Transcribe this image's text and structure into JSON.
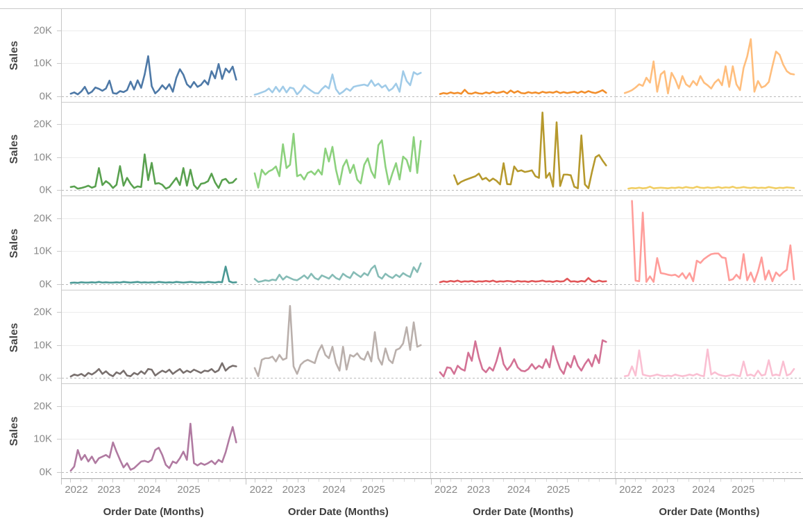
{
  "y_axis": {
    "title": "Sales",
    "ticks": [
      {
        "label": "20K",
        "value": 20000
      },
      {
        "label": "10K",
        "value": 10000
      },
      {
        "label": "0K",
        "value": 0
      }
    ]
  },
  "x_axis": {
    "title": "Order Date (Months)",
    "tick_labels": [
      "2022",
      "2023",
      "2024",
      "2025"
    ]
  },
  "style": {
    "tick_label_color": "#8a8a8a",
    "axis_title_color": "#3d3d3d",
    "gridline_color": "#ececec",
    "zero_line_color": "#b9b9b9",
    "background": "#ffffff"
  },
  "chart_data": {
    "type": "line",
    "title": "",
    "xlabel": "Order Date (Months)",
    "ylabel": "Sales",
    "x_unit": "month",
    "x_start": "2022-01",
    "x_end": "2025-12",
    "points_per_series": 48,
    "values_unit": "thousands (K)",
    "ylim_k": [
      0,
      27
    ],
    "grid_rows": 5,
    "grid_cols": 4,
    "empty_cells": 3,
    "panels": [
      {
        "row": 1,
        "col": 1,
        "color": "#4E79A7",
        "values_k": [
          0.5,
          0.9,
          0.3,
          1.2,
          2.6,
          0.5,
          1.1,
          2.4,
          2.0,
          1.4,
          2.1,
          4.5,
          0.7,
          0.5,
          1.3,
          1.0,
          1.6,
          4.2,
          1.8,
          4.6,
          2.3,
          6.4,
          12.0,
          2.8,
          0.6,
          1.6,
          3.1,
          1.9,
          3.4,
          1.1,
          5.4,
          8.0,
          6.3,
          3.4,
          2.4,
          4.1,
          2.6,
          3.2,
          4.6,
          3.3,
          7.4,
          5.2,
          9.6,
          5.0,
          8.2,
          7.0,
          8.8,
          4.8
        ]
      },
      {
        "row": 1,
        "col": 2,
        "color": "#A0CBE8",
        "values_k": [
          0.2,
          0.5,
          0.9,
          1.3,
          2.1,
          0.9,
          2.6,
          1.1,
          2.7,
          0.9,
          2.4,
          2.1,
          0.3,
          1.4,
          3.1,
          2.2,
          1.4,
          0.7,
          0.6,
          1.9,
          2.9,
          2.1,
          6.4,
          1.9,
          0.4,
          1.1,
          2.1,
          1.4,
          2.6,
          2.9,
          3.1,
          3.3,
          2.9,
          4.6,
          2.9,
          3.6,
          2.4,
          3.1,
          1.4,
          2.1,
          3.6,
          1.1,
          7.4,
          4.4,
          3.1,
          7.1,
          6.4,
          6.9
        ]
      },
      {
        "row": 1,
        "col": 3,
        "color": "#F28E2B",
        "values_k": [
          0.4,
          0.7,
          0.5,
          0.9,
          0.6,
          0.8,
          0.5,
          1.7,
          0.6,
          0.5,
          0.9,
          0.6,
          0.5,
          0.9,
          0.6,
          1.1,
          0.7,
          0.9,
          1.2,
          0.6,
          1.5,
          0.8,
          1.3,
          0.7,
          0.6,
          1.0,
          0.7,
          0.9,
          0.6,
          1.1,
          0.8,
          1.0,
          0.8,
          1.2,
          0.7,
          1.0,
          0.7,
          0.9,
          1.1,
          0.7,
          1.2,
          0.8,
          1.3,
          0.9,
          0.7,
          1.1,
          1.6,
          0.8
        ]
      },
      {
        "row": 1,
        "col": 4,
        "color": "#FFBE7D",
        "values_k": [
          0.7,
          1.1,
          1.6,
          2.4,
          3.4,
          2.9,
          5.4,
          3.9,
          10.4,
          1.1,
          6.4,
          7.4,
          0.6,
          6.9,
          4.9,
          2.1,
          5.9,
          3.4,
          2.6,
          4.4,
          3.1,
          5.9,
          3.9,
          3.1,
          2.1,
          3.9,
          4.9,
          3.1,
          8.9,
          2.6,
          8.9,
          3.4,
          1.6,
          8.4,
          11.9,
          17.2,
          1.1,
          4.4,
          2.4,
          2.9,
          4.1,
          8.9,
          13.4,
          12.4,
          9.4,
          7.4,
          6.6,
          6.4
        ]
      },
      {
        "row": 2,
        "col": 1,
        "color": "#59A14F",
        "values_k": [
          0.8,
          1.0,
          0.3,
          0.5,
          0.8,
          1.2,
          0.6,
          1.0,
          6.6,
          1.4,
          2.6,
          1.8,
          0.5,
          1.5,
          7.2,
          1.2,
          3.6,
          1.8,
          0.5,
          1.0,
          0.8,
          10.8,
          2.9,
          8.2,
          1.8,
          2.0,
          1.5,
          0.3,
          0.8,
          2.2,
          3.6,
          1.4,
          6.6,
          1.2,
          6.1,
          1.4,
          0.2,
          1.8,
          2.0,
          2.6,
          4.9,
          2.2,
          0.5,
          2.9,
          3.3,
          2.0,
          2.2,
          3.3
        ]
      },
      {
        "row": 2,
        "col": 2,
        "color": "#8CD17D",
        "values_k": [
          5.0,
          0.6,
          6.1,
          4.6,
          5.6,
          6.1,
          7.1,
          4.1,
          13.9,
          6.6,
          7.6,
          17.1,
          4.1,
          4.6,
          3.1,
          5.1,
          5.6,
          4.6,
          6.1,
          4.6,
          12.6,
          8.6,
          13.1,
          6.1,
          1.6,
          7.1,
          9.1,
          5.1,
          7.6,
          3.1,
          1.9,
          7.6,
          9.6,
          5.6,
          3.6,
          13.6,
          15.1,
          7.1,
          1.6,
          5.1,
          8.1,
          3.1,
          10.1,
          9.1,
          5.6,
          16.1,
          5.1,
          14.9
        ]
      },
      {
        "row": 2,
        "col": 3,
        "color": "#B6992D",
        "values_k": [
          null,
          null,
          null,
          null,
          4.4,
          1.6,
          2.4,
          2.9,
          3.3,
          3.7,
          4.1,
          4.9,
          3.1,
          3.6,
          2.6,
          3.4,
          2.7,
          1.6,
          8.1,
          1.7,
          1.6,
          7.1,
          5.6,
          5.9,
          5.4,
          5.6,
          5.9,
          4.1,
          3.6,
          23.6,
          3.6,
          5.1,
          0.9,
          20.6,
          1.1,
          4.6,
          4.6,
          4.4,
          0.9,
          0.4,
          16.6,
          1.6,
          0.4,
          5.4,
          9.9,
          10.6,
          8.9,
          7.4
        ]
      },
      {
        "row": 2,
        "col": 4,
        "color": "#F1CE63",
        "values_k": [
          null,
          0.3,
          0.5,
          0.4,
          0.6,
          0.4,
          0.5,
          0.9,
          0.4,
          0.5,
          0.6,
          0.5,
          0.4,
          0.6,
          0.5,
          0.7,
          0.5,
          0.8,
          0.6,
          0.5,
          0.9,
          0.6,
          0.5,
          0.7,
          0.5,
          0.6,
          0.8,
          0.5,
          0.7,
          0.6,
          0.9,
          0.5,
          0.6,
          0.8,
          0.6,
          0.5,
          0.7,
          0.5,
          0.6,
          0.5,
          0.8,
          0.6,
          0.4,
          0.6,
          0.5,
          0.7,
          0.6,
          0.5
        ]
      },
      {
        "row": 3,
        "col": 1,
        "color": "#499894",
        "values_k": [
          0.1,
          0.2,
          0.1,
          0.3,
          0.2,
          0.2,
          0.3,
          0.2,
          0.4,
          0.2,
          0.3,
          0.2,
          0.2,
          0.3,
          0.2,
          0.4,
          0.3,
          0.2,
          0.3,
          0.4,
          0.2,
          0.3,
          0.2,
          0.3,
          0.2,
          0.4,
          0.3,
          0.2,
          0.3,
          0.2,
          0.4,
          0.3,
          0.2,
          0.3,
          0.4,
          0.3,
          0.2,
          0.3,
          0.2,
          0.4,
          0.3,
          0.2,
          0.4,
          0.3,
          5.1,
          0.6,
          0.2,
          0.3
        ]
      },
      {
        "row": 3,
        "col": 2,
        "color": "#86BCB6",
        "values_k": [
          1.3,
          0.4,
          0.6,
          0.9,
          0.7,
          1.1,
          0.9,
          2.6,
          1.1,
          2.1,
          1.6,
          1.1,
          0.9,
          1.6,
          2.4,
          1.4,
          2.9,
          1.6,
          1.1,
          2.4,
          1.9,
          1.4,
          2.6,
          1.6,
          1.1,
          2.9,
          2.1,
          1.6,
          3.4,
          2.6,
          1.9,
          3.1,
          2.4,
          4.4,
          5.4,
          2.1,
          1.4,
          2.9,
          2.1,
          1.6,
          2.6,
          1.9,
          3.1,
          2.4,
          1.9,
          4.9,
          3.4,
          6.1
        ]
      },
      {
        "row": 3,
        "col": 3,
        "color": "#E15759",
        "values_k": [
          0.3,
          0.6,
          0.4,
          0.7,
          0.5,
          0.8,
          0.4,
          0.6,
          0.5,
          0.7,
          0.4,
          0.6,
          0.5,
          0.7,
          0.5,
          0.8,
          0.4,
          0.6,
          0.5,
          0.7,
          0.6,
          0.4,
          0.7,
          0.5,
          0.6,
          0.4,
          0.7,
          0.5,
          0.6,
          0.8,
          0.5,
          0.6,
          0.4,
          0.7,
          0.5,
          0.6,
          1.4,
          0.5,
          0.6,
          0.4,
          0.7,
          0.5,
          1.6,
          0.6,
          0.4,
          0.8,
          0.5,
          0.6
        ]
      },
      {
        "row": 3,
        "col": 4,
        "color": "#FF9D9A",
        "values_k": [
          null,
          null,
          25.2,
          0.8,
          0.6,
          21.6,
          0.4,
          2.1,
          0.4,
          7.7,
          3.1,
          2.9,
          2.6,
          2.4,
          2.6,
          1.9,
          3.1,
          1.4,
          3.1,
          0.6,
          6.9,
          6.2,
          7.4,
          8.2,
          8.9,
          9.1,
          9.1,
          7.9,
          7.7,
          0.9,
          1.2,
          2.6,
          1.4,
          8.9,
          0.9,
          3.3,
          0.4,
          3.6,
          7.9,
          1.1,
          3.9,
          0.6,
          3.3,
          2.2,
          3.3,
          4.1,
          11.6,
          1.2
        ]
      },
      {
        "row": 4,
        "col": 1,
        "color": "#79706E",
        "values_k": [
          0.3,
          0.9,
          0.6,
          1.1,
          0.4,
          1.4,
          0.9,
          1.6,
          2.6,
          1.1,
          1.9,
          0.9,
          0.4,
          1.6,
          1.1,
          2.1,
          0.6,
          0.4,
          1.4,
          0.9,
          1.9,
          1.1,
          2.6,
          2.4,
          0.6,
          1.4,
          2.1,
          1.6,
          2.4,
          1.1,
          1.9,
          2.6,
          1.4,
          2.1,
          1.6,
          2.4,
          1.9,
          1.4,
          2.1,
          1.9,
          2.6,
          1.6,
          2.2,
          4.4,
          2.1,
          3.1,
          3.6,
          3.4
        ]
      },
      {
        "row": 4,
        "col": 2,
        "color": "#BAB0AC",
        "values_k": [
          2.9,
          0.4,
          5.4,
          5.9,
          5.9,
          6.4,
          4.9,
          6.9,
          5.4,
          5.9,
          21.9,
          3.4,
          1.1,
          3.9,
          4.9,
          5.4,
          4.9,
          4.4,
          7.9,
          9.9,
          6.9,
          5.9,
          9.4,
          4.4,
          2.1,
          9.4,
          2.4,
          6.9,
          6.4,
          7.4,
          5.9,
          5.4,
          7.9,
          4.9,
          13.9,
          5.9,
          3.9,
          8.9,
          5.4,
          4.4,
          8.4,
          8.9,
          10.4,
          15.4,
          8.4,
          16.9,
          9.4,
          9.9
        ]
      },
      {
        "row": 4,
        "col": 3,
        "color": "#D37295",
        "values_k": [
          1.6,
          0.3,
          3.1,
          2.9,
          1.1,
          3.6,
          2.6,
          2.1,
          7.6,
          5.1,
          11.1,
          6.1,
          2.6,
          1.6,
          3.1,
          2.1,
          5.1,
          9.1,
          4.1,
          2.3,
          3.6,
          5.6,
          3.1,
          2.1,
          1.9,
          2.6,
          4.1,
          2.6,
          3.6,
          2.9,
          5.6,
          3.1,
          9.6,
          5.6,
          2.6,
          1.1,
          4.6,
          3.1,
          6.6,
          3.6,
          2.1,
          4.1,
          5.6,
          3.4,
          6.9,
          4.4,
          11.4,
          10.9
        ]
      },
      {
        "row": 4,
        "col": 4,
        "color": "#FABFD2",
        "values_k": [
          0.4,
          0.6,
          3.4,
          0.6,
          8.3,
          0.9,
          0.6,
          0.4,
          0.6,
          0.9,
          0.6,
          0.4,
          0.6,
          0.4,
          0.9,
          0.6,
          0.4,
          0.6,
          0.9,
          0.6,
          1.1,
          0.6,
          0.4,
          8.6,
          0.9,
          1.6,
          0.9,
          0.6,
          0.4,
          0.6,
          0.9,
          0.6,
          0.4,
          4.9,
          0.6,
          0.9,
          0.4,
          2.1,
          0.6,
          0.9,
          5.3,
          0.6,
          0.9,
          0.6,
          4.9,
          0.6,
          1.1,
          2.6
        ]
      },
      {
        "row": 5,
        "col": 1,
        "color": "#B07AA1",
        "values_k": [
          0.3,
          1.6,
          6.6,
          3.6,
          5.1,
          3.1,
          4.6,
          2.6,
          4.1,
          4.6,
          5.1,
          4.3,
          8.9,
          6.1,
          3.6,
          1.3,
          2.6,
          0.6,
          1.1,
          2.1,
          3.1,
          3.3,
          2.9,
          3.6,
          6.6,
          7.3,
          5.1,
          2.1,
          1.1,
          3.1,
          2.6,
          4.1,
          6.1,
          3.6,
          14.6,
          2.6,
          1.9,
          2.6,
          2.1,
          2.6,
          3.3,
          2.3,
          3.6,
          2.9,
          5.9,
          9.9,
          13.6,
          8.9
        ]
      }
    ]
  }
}
